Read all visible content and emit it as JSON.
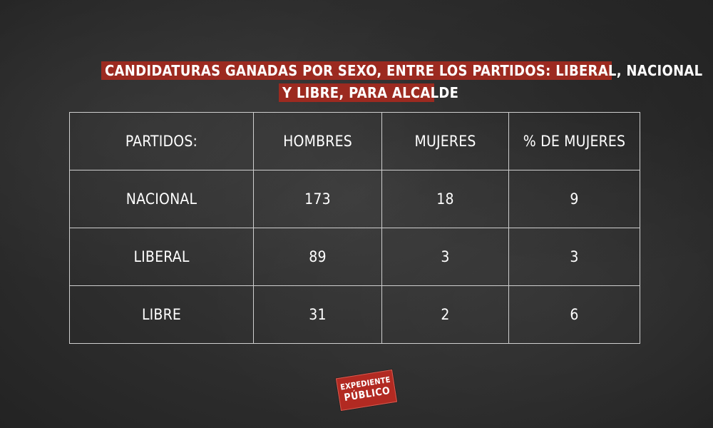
{
  "title": {
    "line1": "CANDIDATURAS GANADAS POR SEXO, ENTRE LOS PARTIDOS: LIBERAL, NACIONAL",
    "line2": "Y LIBRE, PARA ALCALDE"
  },
  "table": {
    "headers": [
      "PARTIDOS:",
      "HOMBRES",
      "MUJERES",
      "% DE MUJERES"
    ],
    "rows": [
      [
        "NACIONAL",
        "173",
        "18",
        "9"
      ],
      [
        "LIBERAL",
        "89",
        "3",
        "3"
      ],
      [
        "LIBRE",
        "31",
        "2",
        "6"
      ]
    ]
  },
  "logo": {
    "top": "EXPEDIENTE",
    "bottom": "PÚBLICO"
  },
  "colors": {
    "background": "#303030",
    "title_bg": "#9c2a20",
    "text": "#ffffff",
    "grid": "#cfcfcf",
    "logo_bg": "#b22a22"
  },
  "chart_data": {
    "type": "table",
    "title": "CANDIDATURAS GANADAS POR SEXO, ENTRE LOS PARTIDOS: LIBERAL, NACIONAL Y LIBRE, PARA ALCALDE",
    "columns": [
      "PARTIDOS:",
      "HOMBRES",
      "MUJERES",
      "% DE MUJERES"
    ],
    "rows": [
      {
        "partido": "NACIONAL",
        "hombres": 173,
        "mujeres": 18,
        "pct_mujeres": 9
      },
      {
        "partido": "LIBERAL",
        "hombres": 89,
        "mujeres": 3,
        "pct_mujeres": 3
      },
      {
        "partido": "LIBRE",
        "hombres": 31,
        "mujeres": 2,
        "pct_mujeres": 6
      }
    ]
  }
}
